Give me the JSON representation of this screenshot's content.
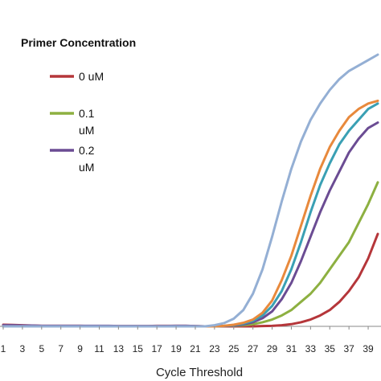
{
  "chart_data": {
    "type": "line",
    "title": "",
    "xlabel": "Cycle Threshold",
    "ylabel": "",
    "xlim": [
      1,
      40
    ],
    "ylim": [
      0,
      1.0
    ],
    "grid": false,
    "legend_title": "Primer Concentration",
    "legend_placement": "top-left",
    "x_ticks": [
      1,
      3,
      5,
      7,
      9,
      11,
      13,
      15,
      17,
      19,
      21,
      23,
      25,
      27,
      29,
      31,
      33,
      35,
      37,
      39
    ],
    "x_tick_labels": [
      "1",
      "3",
      "5",
      "7",
      "9",
      "11",
      "13",
      "15",
      "17",
      "19",
      "21",
      "23",
      "25",
      "27",
      "29",
      "31",
      "33",
      "35",
      "37",
      "39"
    ],
    "x": [
      1,
      2,
      3,
      4,
      5,
      6,
      7,
      8,
      9,
      10,
      11,
      12,
      13,
      14,
      15,
      16,
      17,
      18,
      19,
      20,
      21,
      22,
      23,
      24,
      25,
      26,
      27,
      28,
      29,
      30,
      31,
      32,
      33,
      34,
      35,
      36,
      37,
      38,
      39,
      40
    ],
    "series": [
      {
        "name": "0 uM",
        "legend_lines": [
          "0 uM"
        ],
        "color": "#b5363a",
        "values": [
          0.006,
          0.005,
          0.004,
          0.003,
          0.002,
          0.002,
          0.002,
          0.002,
          0.002,
          0.001,
          0.001,
          0.001,
          0.001,
          0.001,
          0.001,
          0.001,
          0.002,
          0.002,
          0.002,
          0.002,
          0.001,
          0.0,
          0.0,
          0.0,
          0.0,
          0.0,
          0.0,
          0.001,
          0.002,
          0.004,
          0.008,
          0.015,
          0.025,
          0.04,
          0.06,
          0.09,
          0.13,
          0.18,
          0.25,
          0.34
        ]
      },
      {
        "name": "0.1 uM",
        "legend_lines": [
          "0.1",
          "uM"
        ],
        "color": "#8db041",
        "values": [
          0.0,
          0.0,
          0.0,
          0.0,
          0.0,
          0.0,
          0.0,
          0.0,
          0.0,
          0.0,
          0.0,
          0.0,
          0.0,
          0.0,
          0.0,
          0.0,
          0.0,
          0.0,
          0.0,
          0.0,
          0.0,
          0.0,
          0.0,
          0.001,
          0.002,
          0.004,
          0.008,
          0.015,
          0.025,
          0.04,
          0.06,
          0.09,
          0.12,
          0.16,
          0.21,
          0.26,
          0.31,
          0.38,
          0.45,
          0.53
        ]
      },
      {
        "name": "0.2 uM",
        "legend_lines": [
          "0.2",
          "uM"
        ],
        "color": "#6b4c93",
        "values": [
          0.004,
          0.004,
          0.003,
          0.003,
          0.002,
          0.002,
          0.002,
          0.002,
          0.002,
          0.002,
          0.002,
          0.002,
          0.001,
          0.001,
          0.001,
          0.001,
          0.001,
          0.001,
          0.002,
          0.002,
          0.001,
          0.0,
          0.0,
          0.001,
          0.003,
          0.007,
          0.015,
          0.03,
          0.055,
          0.1,
          0.16,
          0.24,
          0.33,
          0.42,
          0.5,
          0.57,
          0.64,
          0.69,
          0.73,
          0.75
        ]
      },
      {
        "color": "#3aa0b4",
        "values": [
          0.0,
          0.0,
          0.0,
          0.0,
          0.0,
          0.0,
          0.0,
          0.0,
          0.0,
          0.0,
          0.0,
          0.0,
          0.0,
          0.0,
          0.0,
          0.0,
          0.0,
          0.0,
          0.0,
          0.0,
          0.0,
          0.0,
          0.0,
          0.002,
          0.005,
          0.01,
          0.02,
          0.04,
          0.075,
          0.13,
          0.21,
          0.31,
          0.42,
          0.52,
          0.6,
          0.67,
          0.72,
          0.76,
          0.8,
          0.82
        ]
      },
      {
        "color": "#e8893c",
        "values": [
          0.0,
          0.0,
          0.0,
          0.0,
          0.0,
          0.0,
          0.0,
          0.0,
          0.0,
          0.0,
          0.0,
          0.0,
          0.0,
          0.0,
          0.0,
          0.0,
          0.0,
          0.0,
          0.0,
          0.0,
          0.0,
          0.0,
          0.0,
          0.002,
          0.006,
          0.013,
          0.025,
          0.05,
          0.095,
          0.17,
          0.26,
          0.37,
          0.48,
          0.58,
          0.66,
          0.72,
          0.77,
          0.8,
          0.82,
          0.83
        ]
      },
      {
        "color": "#94afd4",
        "values": [
          0.0,
          0.0,
          0.0,
          0.0,
          0.0,
          0.0,
          0.0,
          0.0,
          0.0,
          0.0,
          0.0,
          0.0,
          0.0,
          0.0,
          0.0,
          0.0,
          0.0,
          0.0,
          0.0,
          0.0,
          0.0,
          0.0,
          0.004,
          0.012,
          0.028,
          0.06,
          0.12,
          0.21,
          0.33,
          0.46,
          0.58,
          0.68,
          0.76,
          0.82,
          0.87,
          0.91,
          0.94,
          0.96,
          0.98,
          1.0
        ]
      }
    ]
  }
}
